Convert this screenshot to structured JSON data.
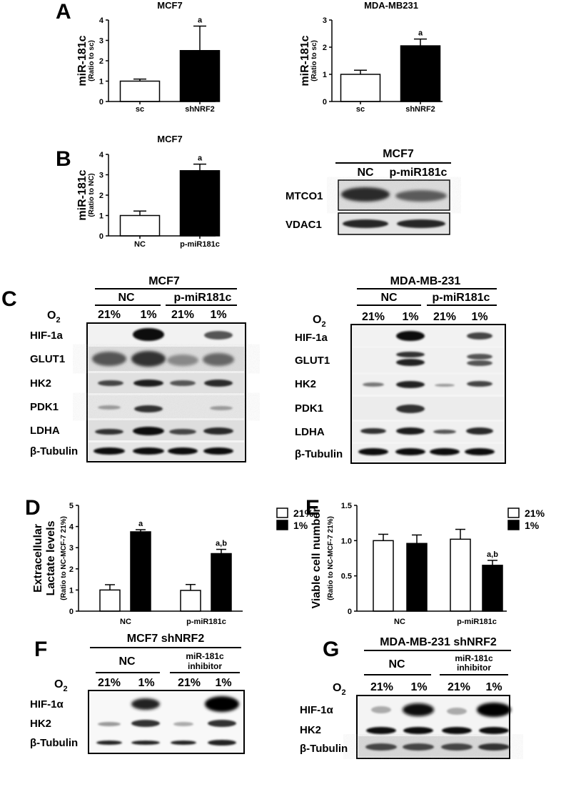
{
  "panel_letters": {
    "a": "A",
    "b": "B",
    "c": "C",
    "d": "D",
    "e": "E",
    "f": "F",
    "g": "G"
  },
  "chart_data": [
    {
      "id": "A1",
      "type": "bar",
      "title": "MCF7",
      "ylabel": "miR-181c",
      "ysub": "(Ratio to sc)",
      "categories": [
        "sc",
        "shNRF2"
      ],
      "values": [
        1.0,
        2.5
      ],
      "errors": [
        0.1,
        1.2
      ],
      "ylim": [
        0,
        4
      ],
      "yticks": [
        "0",
        "1",
        "2",
        "3",
        "4"
      ],
      "annotations": [
        "",
        "a"
      ],
      "fills": [
        "#ffffff",
        "#000000"
      ]
    },
    {
      "id": "A2",
      "type": "bar",
      "title": "MDA-MB231",
      "ylabel": "miR-181c",
      "ysub": "(Ratio to sc)",
      "categories": [
        "sc",
        "shNRF2"
      ],
      "values": [
        1.0,
        2.05
      ],
      "errors": [
        0.15,
        0.25
      ],
      "ylim": [
        0,
        3
      ],
      "yticks": [
        "0",
        "1",
        "2",
        "3"
      ],
      "annotations": [
        "",
        "a"
      ],
      "fills": [
        "#ffffff",
        "#000000"
      ]
    },
    {
      "id": "B",
      "type": "bar",
      "title": "MCF7",
      "ylabel": "miR-181c",
      "ysub": "(Ratio to NC)",
      "categories": [
        "NC",
        "p-miR181c"
      ],
      "values": [
        1.0,
        3.2
      ],
      "errors": [
        0.22,
        0.32
      ],
      "ylim": [
        0,
        4
      ],
      "yticks": [
        "0",
        "1",
        "2",
        "3",
        "4"
      ],
      "annotations": [
        "",
        "a"
      ],
      "fills": [
        "#ffffff",
        "#000000"
      ]
    },
    {
      "id": "D",
      "type": "bar",
      "ylabel": "Extracellular",
      "ylabel2": "Lactate levels",
      "ysub": "(Ratio to NC-MCF-7 21%)",
      "categories": [
        "NC",
        "p-miR181c"
      ],
      "series": [
        {
          "name": "21%",
          "values": [
            1.0,
            0.98
          ],
          "errors": [
            0.25,
            0.28
          ]
        },
        {
          "name": "1%",
          "values": [
            3.75,
            2.72
          ],
          "errors": [
            0.1,
            0.2
          ]
        }
      ],
      "annotations": [
        [
          "",
          "a"
        ],
        [
          "",
          "a,b"
        ]
      ],
      "ylim": [
        0,
        5
      ],
      "yticks": [
        "0",
        "1",
        "2",
        "3",
        "4",
        "5"
      ]
    },
    {
      "id": "E",
      "type": "bar",
      "ylabel": "Viable cell number",
      "ysub": "(Ratio to NC-MCF-7 21%)",
      "categories": [
        "NC",
        "p-miR181c"
      ],
      "series": [
        {
          "name": "21%",
          "values": [
            1.0,
            1.02
          ],
          "errors": [
            0.09,
            0.14
          ]
        },
        {
          "name": "1%",
          "values": [
            0.96,
            0.65
          ],
          "errors": [
            0.12,
            0.07
          ]
        }
      ],
      "annotations": [
        [
          "",
          ""
        ],
        [
          "",
          "a,b"
        ]
      ],
      "ylim": [
        0,
        1.5
      ],
      "yticks": [
        "0",
        "0.5",
        "1.0",
        "1.5"
      ]
    }
  ],
  "blots": {
    "B": {
      "cell": "MCF7",
      "lanes": [
        "NC",
        "p-miR181c"
      ],
      "rows": [
        "MTCO1",
        "VDAC1"
      ]
    },
    "C1": {
      "cell": "MCF7",
      "groups": [
        "NC",
        "p-miR181c"
      ],
      "o2": "O",
      "o2sub": "2",
      "lanes": [
        "21%",
        "1%",
        "21%",
        "1%"
      ],
      "rows": [
        "HIF-1a",
        "GLUT1",
        "HK2",
        "PDK1",
        "LDHA",
        "β-Tubulin"
      ]
    },
    "C2": {
      "cell": "MDA-MB-231",
      "groups": [
        "NC",
        "p-miR181c"
      ],
      "o2": "O",
      "o2sub": "2",
      "lanes": [
        "21%",
        "1%",
        "21%",
        "1%"
      ],
      "rows": [
        "HIF-1a",
        "GLUT1",
        "HK2",
        "PDK1",
        "LDHA",
        "β-Tubulin"
      ]
    },
    "F": {
      "cell": "MCF7 shNRF2",
      "groups": [
        "NC",
        "miR-181c",
        "inhibitor"
      ],
      "o2": "O",
      "o2sub": "2",
      "lanes": [
        "21%",
        "1%",
        "21%",
        "1%"
      ],
      "rows": [
        "HIF-1α",
        "HK2",
        "β-Tubulin"
      ]
    },
    "G": {
      "cell": "MDA-MB-231 shNRF2",
      "groups": [
        "NC",
        "miR-181c",
        "inhibitor"
      ],
      "o2": "O",
      "o2sub": "2",
      "lanes": [
        "21%",
        "1%",
        "21%",
        "1%"
      ],
      "rows": [
        "HIF-1α",
        "HK2",
        "β-Tubulin"
      ]
    }
  }
}
